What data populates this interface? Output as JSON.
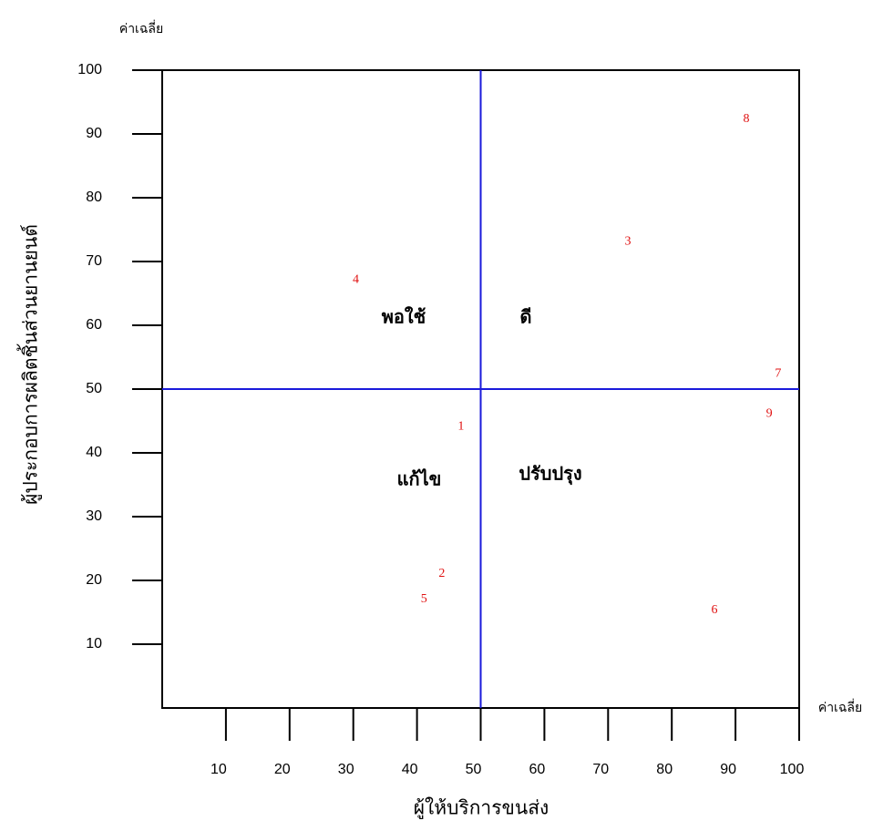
{
  "chart_data": {
    "type": "scatter",
    "corner_label_y": "ค่าเฉลี่ย",
    "corner_label_x": "ค่าเฉลี่ย",
    "x_label": "ผู้ให้บริการขนส่ง",
    "y_label": "ผู้ประกอบการผลิตชิ้นส่วนยานยนต์",
    "quadrant_labels": [
      "พอใช้",
      "ดี",
      "แก้ไข",
      "ปรับปรุง"
    ],
    "xlim": [
      0,
      100
    ],
    "ylim": [
      0,
      100
    ],
    "xticks": [
      10,
      20,
      30,
      40,
      50,
      60,
      70,
      80,
      90,
      100
    ],
    "yticks": [
      10,
      20,
      30,
      40,
      50,
      60,
      70,
      80,
      90,
      100
    ],
    "reference_x": 50,
    "reference_y": 50,
    "reference_color": "#1a1adb",
    "series": [
      {
        "color": "#e01010",
        "labels": [
          "1",
          "2",
          "3",
          "4",
          "5",
          "6",
          "7",
          "8",
          "9"
        ],
        "x": [
          46.9,
          43.9,
          73.1,
          30.4,
          41.1,
          86.7,
          96.7,
          91.7,
          95.3
        ],
        "values": [
          44.1,
          21,
          73.1,
          67.1,
          17,
          15.3,
          52.4,
          92.3,
          46.1
        ]
      }
    ]
  }
}
